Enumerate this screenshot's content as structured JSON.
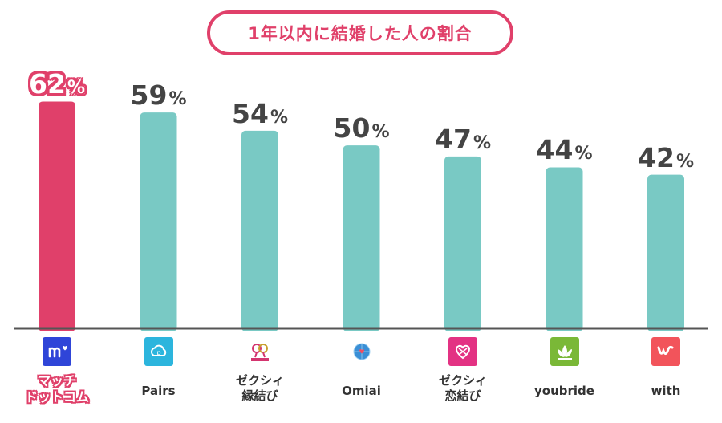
{
  "chart_data": {
    "type": "bar",
    "title": "1年以内に結婚した人の割合",
    "categories": [
      "マッチ\nドットコム",
      "Pairs",
      "ゼクシィ\n縁結び",
      "Omiai",
      "ゼクシィ\n恋結び",
      "youbride",
      "with"
    ],
    "values": [
      62,
      59,
      54,
      50,
      47,
      44,
      42
    ],
    "unit": "%",
    "ylim": [
      0,
      70
    ],
    "highlight_index": 0,
    "colors": {
      "highlight": "#e0406a",
      "bar": "#79c9c4",
      "axis": "#555555",
      "label": "#444444"
    },
    "logo_icons": [
      "match-com-logo-icon",
      "pairs-logo-icon",
      "zexy-enmusubi-logo-icon",
      "omiai-logo-icon",
      "zexy-koimusubi-logo-icon",
      "youbride-logo-icon",
      "with-logo-icon"
    ],
    "logo_colors": [
      "#2f45d8",
      "#2cb5dd",
      "#ffffff",
      "#ffffff",
      "#e33283",
      "#7ab837",
      "#f2545b"
    ],
    "grid": false,
    "legend": "none"
  }
}
